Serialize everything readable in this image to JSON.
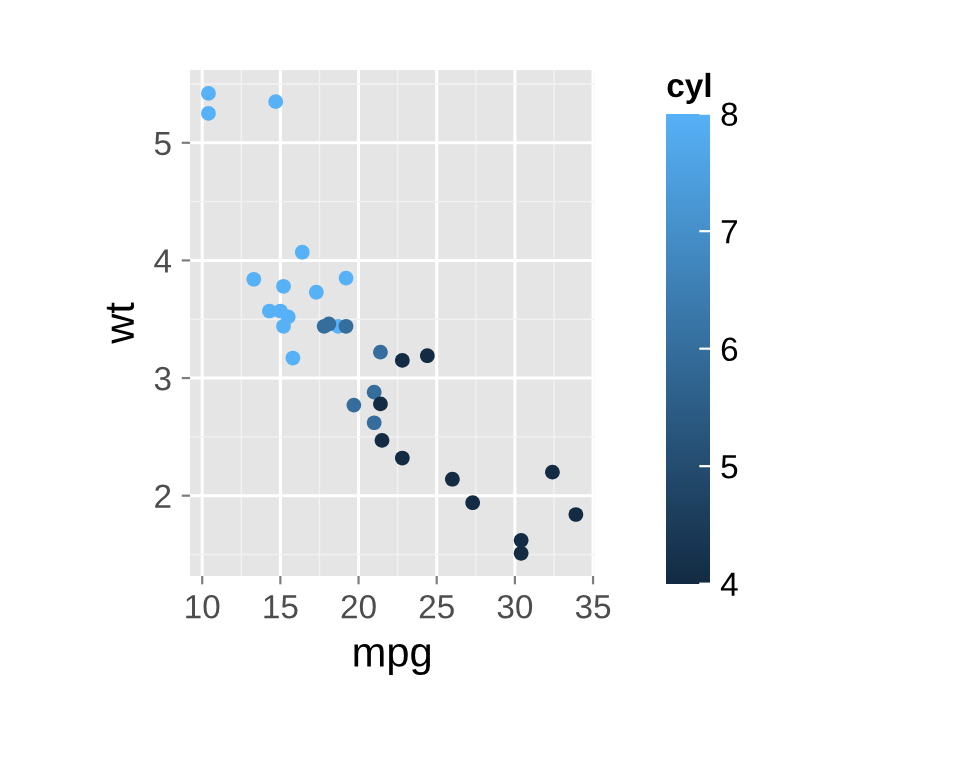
{
  "chart_data": {
    "type": "scatter",
    "xlabel": "mpg",
    "ylabel": "wt",
    "clabel": "cyl",
    "x": [
      21.0,
      21.0,
      22.8,
      21.4,
      18.7,
      18.1,
      14.3,
      24.4,
      22.8,
      19.2,
      17.8,
      16.4,
      17.3,
      15.2,
      10.4,
      10.4,
      14.7,
      32.4,
      30.4,
      33.9,
      21.5,
      15.5,
      15.2,
      13.3,
      19.2,
      27.3,
      26.0,
      30.4,
      15.8,
      19.7,
      15.0,
      21.4
    ],
    "values": [
      2.62,
      2.88,
      2.32,
      3.22,
      3.44,
      3.46,
      3.57,
      3.19,
      3.15,
      3.44,
      3.44,
      4.07,
      3.73,
      3.78,
      5.25,
      5.42,
      5.35,
      2.2,
      1.62,
      1.84,
      2.47,
      3.52,
      3.44,
      3.84,
      3.85,
      1.94,
      2.14,
      1.51,
      3.17,
      2.77,
      3.57,
      2.78
    ],
    "cvalues": [
      6,
      6,
      4,
      6,
      8,
      6,
      8,
      4,
      4,
      6,
      6,
      8,
      8,
      8,
      8,
      8,
      8,
      4,
      4,
      4,
      4,
      8,
      8,
      8,
      8,
      4,
      4,
      4,
      8,
      6,
      8,
      4
    ],
    "clim": [
      4,
      8
    ],
    "cticks": [
      4,
      5,
      6,
      7,
      8
    ],
    "xlim": [
      9.225,
      35.075
    ],
    "xticks": [
      10,
      15,
      20,
      25,
      30,
      35
    ],
    "ylim": [
      1.317,
      5.62
    ],
    "yticks": [
      2,
      3,
      4,
      5
    ],
    "grid": true,
    "marker": "circle"
  }
}
